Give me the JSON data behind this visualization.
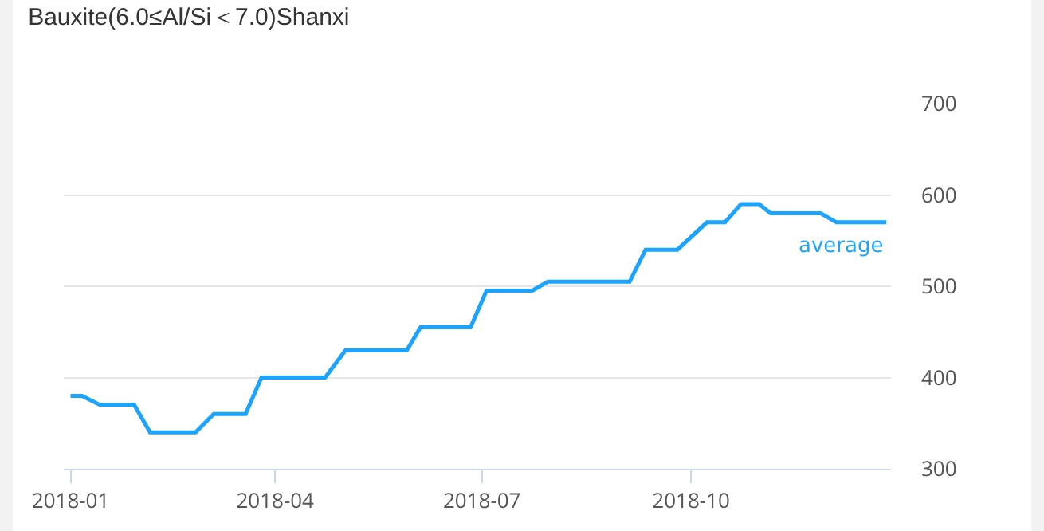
{
  "chart_data": {
    "type": "step",
    "title": "Bauxite(6.0≤Al/Si＜7.0)Shanxi",
    "x": [
      "2018-01-01",
      "2018-01-06",
      "2018-01-14",
      "2018-01-29",
      "2018-02-05",
      "2018-02-25",
      "2018-03-05",
      "2018-03-19",
      "2018-03-26",
      "2018-04-23",
      "2018-05-02",
      "2018-05-29",
      "2018-06-04",
      "2018-06-26",
      "2018-07-03",
      "2018-07-23",
      "2018-07-30",
      "2018-09-04",
      "2018-09-11",
      "2018-09-25",
      "2018-10-08",
      "2018-10-16",
      "2018-10-23",
      "2018-10-31",
      "2018-11-05",
      "2018-11-27",
      "2018-12-04",
      "2018-12-26"
    ],
    "series": [
      {
        "name": "average",
        "color": "#1aa3ff",
        "values": [
          380,
          380,
          370,
          370,
          340,
          340,
          360,
          360,
          400,
          400,
          430,
          430,
          455,
          455,
          495,
          495,
          505,
          505,
          540,
          540,
          570,
          570,
          590,
          590,
          580,
          580,
          570,
          570
        ]
      }
    ],
    "xlim": [
      "2017-12-29",
      "2018-12-28"
    ],
    "xticks": [
      "2018-01",
      "2018-04",
      "2018-07",
      "2018-10"
    ],
    "ylim": [
      300,
      700
    ],
    "yticks": [
      300,
      400,
      500,
      600,
      700
    ],
    "grid": "y",
    "legend": false,
    "marker": "none",
    "line_style": "solid"
  }
}
